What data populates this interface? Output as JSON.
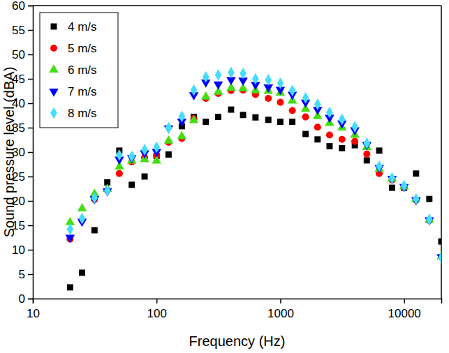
{
  "chart_data": {
    "type": "scatter",
    "x_label": "Frequency (Hz)",
    "y_label": "Sound pressure level (dBA)",
    "x": [
      20,
      25,
      31.5,
      40,
      50,
      63,
      80,
      100,
      125,
      160,
      200,
      250,
      315,
      400,
      500,
      630,
      800,
      1000,
      1250,
      1600,
      2000,
      2500,
      3150,
      4000,
      5000,
      6300,
      8000,
      10000,
      12500,
      16000,
      20000
    ],
    "series": [
      {
        "name": "4 m/s",
        "color": "#000000",
        "marker": "square",
        "values": [
          2.3,
          5.3,
          14,
          23.8,
          30.3,
          23.3,
          25,
          29.2,
          29.5,
          35.3,
          37.2,
          36.2,
          37.2,
          38.7,
          37.6,
          37.1,
          36.6,
          36.2,
          36.2,
          33.7,
          32.6,
          31.2,
          30.8,
          31.4,
          28.3,
          30.3,
          22.7,
          22.7,
          25.6,
          20.4,
          11.7
        ]
      },
      {
        "name": "5 m/s",
        "color": "#ff0000",
        "marker": "circle",
        "values": [
          12.2,
          16,
          20.3,
          22.2,
          25.6,
          28,
          28.9,
          29.3,
          32,
          32.8,
          36.8,
          41,
          42,
          42.6,
          42.7,
          41.8,
          41,
          40.2,
          38.5,
          37.2,
          35.1,
          33.5,
          32.6,
          32.2,
          29.6,
          25.6,
          24.3,
          22.8,
          20.2,
          16,
          8.5
        ]
      },
      {
        "name": "6 m/s",
        "color": "#44dd11",
        "marker": "triangle-up",
        "values": [
          15.6,
          18.4,
          21.4,
          22.4,
          27,
          28.2,
          28.5,
          28.2,
          32.3,
          33.2,
          36.5,
          41.3,
          42.3,
          43.1,
          43,
          42.6,
          42.5,
          42.1,
          40.5,
          38.8,
          37.3,
          35.9,
          35,
          33.5,
          31,
          26.5,
          24.5,
          22.9,
          20.3,
          16.1,
          8.6
        ]
      },
      {
        "name": "7 m/s",
        "color": "#0000ff",
        "marker": "triangle-down",
        "values": [
          12.5,
          15.8,
          20.4,
          22,
          28.5,
          28.8,
          29.8,
          30.1,
          34.9,
          36.3,
          41.7,
          44.3,
          43.9,
          44.8,
          44.7,
          43.8,
          43.3,
          42.8,
          41.8,
          40.2,
          38.7,
          37.1,
          35.9,
          34.5,
          31.5,
          26.8,
          24.6,
          22.9,
          20.2,
          16.1,
          8.5
        ]
      },
      {
        "name": "8 m/s",
        "color": "#44ddff",
        "marker": "diamond",
        "values": [
          14.2,
          16.4,
          20.6,
          22.1,
          29.4,
          29.1,
          30.5,
          31,
          35,
          37.3,
          42.7,
          45.4,
          45.8,
          46.3,
          46.1,
          45,
          44.8,
          44.1,
          42.6,
          41.1,
          39.8,
          38.1,
          36.7,
          35.2,
          31.8,
          27.1,
          24.7,
          23.1,
          20.4,
          16.2,
          8.4
        ]
      }
    ],
    "log": "x",
    "xlim": [
      10,
      20000
    ],
    "xticks": [
      10,
      100,
      1000,
      10000
    ],
    "ylim": [
      0,
      60
    ],
    "yticks": [
      0,
      5,
      10,
      15,
      20,
      25,
      30,
      35,
      40,
      45,
      50,
      55,
      60
    ],
    "grid": false,
    "legend": "top-left"
  }
}
